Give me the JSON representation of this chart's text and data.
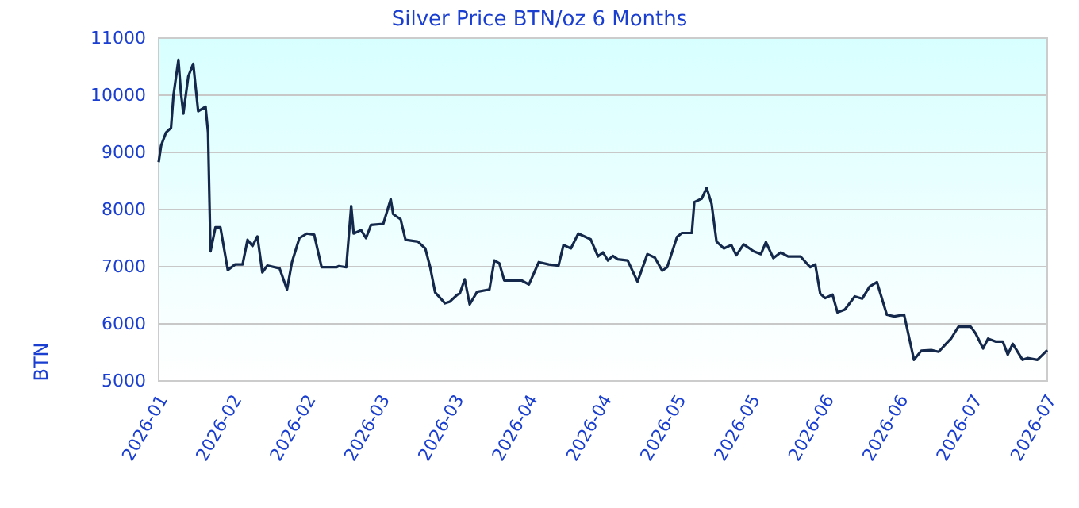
{
  "chart_data": {
    "type": "line",
    "title": "Silver Price BTN/oz 6 Months",
    "ylabel": "BTN",
    "x": [
      "2026-01-15",
      "2026-01-15T12:00",
      "2026-01-16T12:00",
      "2026-01-17T12:00",
      "2026-01-18",
      "2026-01-19",
      "2026-01-19T12:00",
      "2026-01-20",
      "2026-01-21",
      "2026-01-22",
      "2026-01-23",
      "2026-01-24T12:00",
      "2026-01-25",
      "2026-01-25T12:00",
      "2026-01-26T12:00",
      "2026-01-27T12:00",
      "2026-01-29",
      "2026-01-30T12:00",
      "2026-02-01",
      "2026-02-02",
      "2026-02-03",
      "2026-02-04",
      "2026-02-05",
      "2026-02-06",
      "2026-02-08T12:00",
      "2026-02-10",
      "2026-02-11",
      "2026-02-12T12:00",
      "2026-02-14",
      "2026-02-15T12:00",
      "2026-02-17",
      "2026-02-20",
      "2026-02-20T12:00",
      "2026-02-22",
      "2026-02-23",
      "2026-02-23T12:00",
      "2026-02-25",
      "2026-02-26",
      "2026-02-27",
      "2026-03-01T12:00",
      "2026-03-03",
      "2026-03-03T12:00",
      "2026-03-05",
      "2026-03-06",
      "2026-03-08T12:00",
      "2026-03-10",
      "2026-03-11",
      "2026-03-12",
      "2026-03-14",
      "2026-03-15",
      "2026-03-16T12:00",
      "2026-03-17",
      "2026-03-18",
      "2026-03-19",
      "2026-03-20T12:00",
      "2026-03-23",
      "2026-03-24",
      "2026-03-25",
      "2026-03-26",
      "2026-03-29T12:00",
      "2026-03-31",
      "2026-04-02",
      "2026-04-04",
      "2026-04-06",
      "2026-04-07",
      "2026-04-08T12:00",
      "2026-04-10",
      "2026-04-12T12:00",
      "2026-04-14",
      "2026-04-15",
      "2026-04-16",
      "2026-04-17",
      "2026-04-18",
      "2026-04-20",
      "2026-04-22",
      "2026-04-24",
      "2026-04-25T12:00",
      "2026-04-27",
      "2026-04-28",
      "2026-04-30",
      "2026-05-01",
      "2026-05-03",
      "2026-05-03T12:00",
      "2026-05-05",
      "2026-05-06",
      "2026-05-07",
      "2026-05-08",
      "2026-05-09T12:00",
      "2026-05-11",
      "2026-05-12",
      "2026-05-13T12:00",
      "2026-05-15T12:00",
      "2026-05-17",
      "2026-05-18",
      "2026-05-19T12:00",
      "2026-05-21",
      "2026-05-22T12:00",
      "2026-05-25",
      "2026-05-27",
      "2026-05-28",
      "2026-05-29",
      "2026-05-30",
      "2026-05-31T12:00",
      "2026-06-01T12:00",
      "2026-06-03",
      "2026-06-05",
      "2026-06-06T12:00",
      "2026-06-08",
      "2026-06-09T12:00",
      "2026-06-11T12:00",
      "2026-06-13",
      "2026-06-15",
      "2026-06-17",
      "2026-06-18T12:00",
      "2026-06-20T12:00",
      "2026-06-22",
      "2026-06-23T12:00",
      "2026-06-24T12:00",
      "2026-06-26",
      "2026-06-28T12:00",
      "2026-06-29T12:00",
      "2026-07-01",
      "2026-07-02",
      "2026-07-03T12:00",
      "2026-07-05",
      "2026-07-06",
      "2026-07-07",
      "2026-07-09",
      "2026-07-10",
      "2026-07-12",
      "2026-07-14"
    ],
    "series": [
      {
        "color": "#14284b",
        "values": [
          8830,
          9120,
          9350,
          9430,
          10000,
          10620,
          10050,
          9680,
          10330,
          10550,
          9720,
          9800,
          9350,
          7270,
          7690,
          7690,
          6940,
          7040,
          7040,
          7470,
          7360,
          7530,
          6900,
          7020,
          6970,
          6600,
          7080,
          7500,
          7580,
          7560,
          6990,
          6990,
          7010,
          6990,
          8060,
          7580,
          7640,
          7500,
          7730,
          7750,
          8180,
          7920,
          7830,
          7470,
          7440,
          7320,
          6990,
          6550,
          6360,
          6390,
          6510,
          6530,
          6780,
          6340,
          6560,
          6600,
          7110,
          7060,
          6760,
          6760,
          6690,
          7080,
          7040,
          7020,
          7380,
          7320,
          7580,
          7480,
          7180,
          7250,
          7110,
          7190,
          7130,
          7110,
          6740,
          7220,
          7160,
          6930,
          6990,
          7520,
          7590,
          7590,
          8130,
          8190,
          8380,
          8100,
          7440,
          7320,
          7380,
          7200,
          7390,
          7270,
          7220,
          7430,
          7150,
          7250,
          7180,
          7180,
          6990,
          7040,
          6530,
          6450,
          6510,
          6200,
          6250,
          6480,
          6440,
          6650,
          6730,
          6160,
          6130,
          6160,
          5370,
          5530,
          5540,
          5510,
          5650,
          5740,
          5950,
          5950,
          5830,
          5570,
          5740,
          5690,
          5690,
          5460,
          5650,
          5370,
          5400,
          5370,
          5540
        ]
      }
    ],
    "xlim": [
      "2026-01-15",
      "2026-07-14"
    ],
    "xticks": [
      {
        "value": "2026-01-15",
        "label": "2026-01"
      },
      {
        "value": "2026-01-30",
        "label": "2026-02"
      },
      {
        "value": "2026-02-14",
        "label": "2026-02"
      },
      {
        "value": "2026-03-01",
        "label": "2026-03"
      },
      {
        "value": "2026-03-16",
        "label": "2026-03"
      },
      {
        "value": "2026-03-31",
        "label": "2026-04"
      },
      {
        "value": "2026-04-15",
        "label": "2026-04"
      },
      {
        "value": "2026-04-30",
        "label": "2026-05"
      },
      {
        "value": "2026-05-15",
        "label": "2026-05"
      },
      {
        "value": "2026-05-30",
        "label": "2026-06"
      },
      {
        "value": "2026-06-14",
        "label": "2026-06"
      },
      {
        "value": "2026-06-29",
        "label": "2026-07"
      },
      {
        "value": "2026-07-14",
        "label": "2026-07"
      }
    ],
    "ylim": [
      5000,
      11000
    ],
    "yticks": [
      5000,
      6000,
      7000,
      8000,
      9000,
      10000,
      11000
    ],
    "grid": "y",
    "marker": "none",
    "line_style": "solid"
  }
}
